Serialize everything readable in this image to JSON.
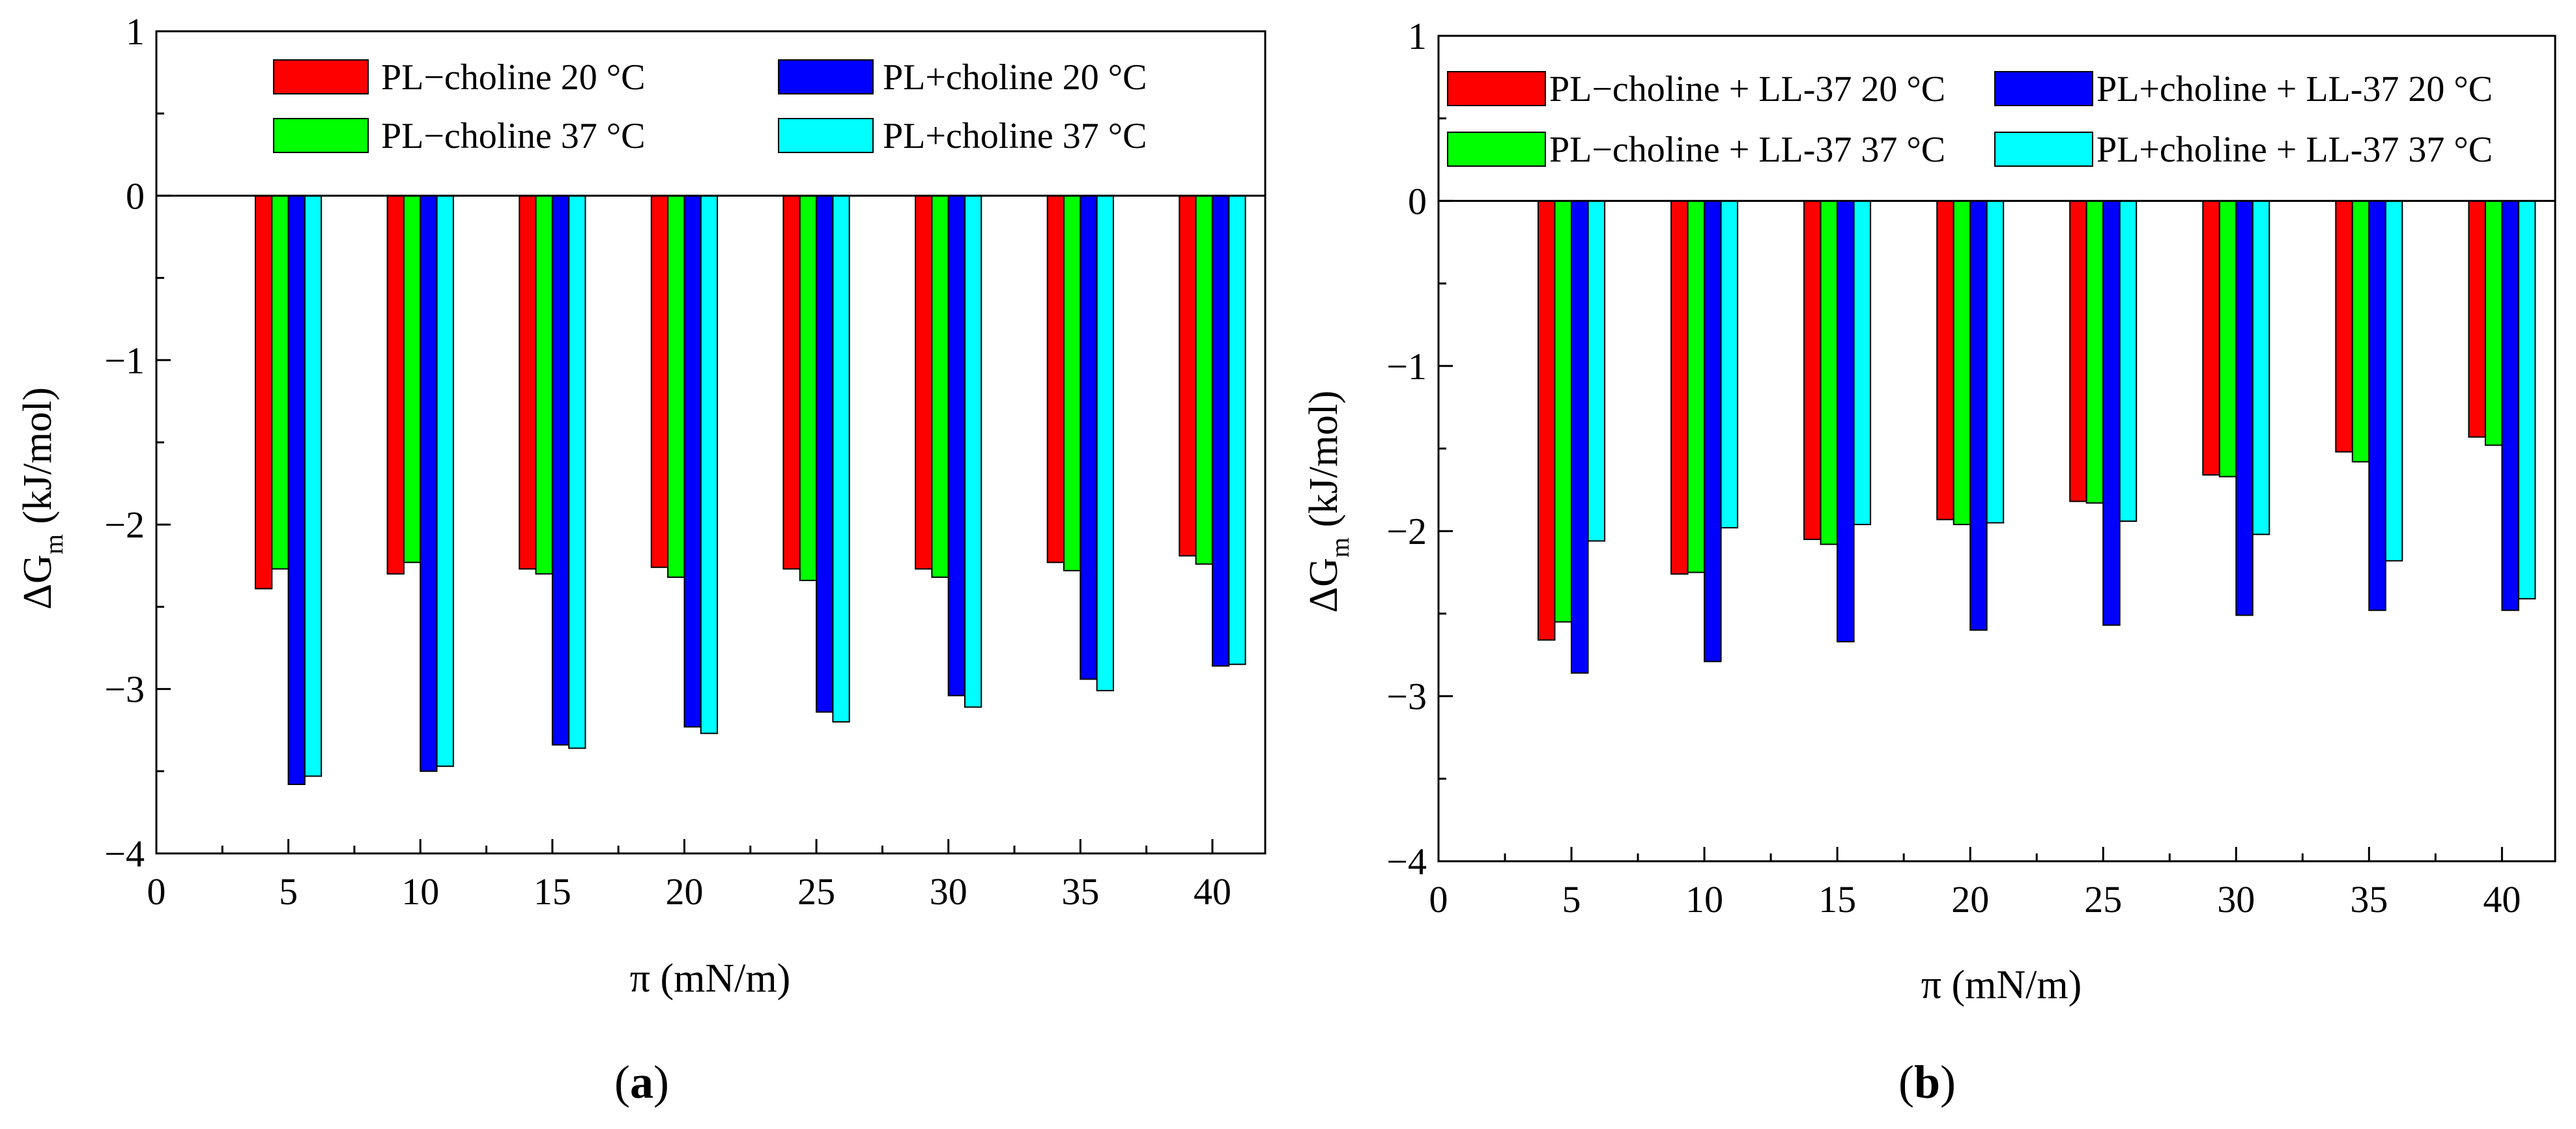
{
  "figure": {
    "panels": [
      {
        "label_open": "(",
        "label_letter": "a",
        "label_close": ")"
      },
      {
        "label_open": "(",
        "label_letter": "b",
        "label_close": ")"
      }
    ]
  },
  "chart_data": [
    {
      "type": "bar",
      "panel": "a",
      "xlabel": "π (mN/m)",
      "ylabel_main": "ΔG",
      "ylabel_sub": "m",
      "ylabel_unit": "(kJ/mol)",
      "xlim": [
        0,
        42
      ],
      "ylim": [
        -4,
        1
      ],
      "x_ticks": [
        0,
        5,
        10,
        15,
        20,
        25,
        30,
        35,
        40
      ],
      "x_tick_labels": [
        "0",
        "5",
        "10",
        "15",
        "20",
        "25",
        "30",
        "35",
        "40"
      ],
      "y_ticks": [
        1,
        0,
        -1,
        -2,
        -3,
        -4
      ],
      "y_tick_labels": [
        "1",
        "0",
        "−1",
        "−2",
        "−3",
        "−4"
      ],
      "categories": [
        5,
        10,
        15,
        20,
        25,
        30,
        35,
        40
      ],
      "legend_position": "top",
      "series": [
        {
          "name": "PL−choline 20 °C",
          "color": "#ff0000",
          "values": [
            -2.39,
            -2.3,
            -2.27,
            -2.26,
            -2.27,
            -2.27,
            -2.23,
            -2.19
          ]
        },
        {
          "name": "PL−choline 37 °C",
          "color": "#00ff00",
          "values": [
            -2.27,
            -2.23,
            -2.3,
            -2.32,
            -2.34,
            -2.32,
            -2.28,
            -2.24
          ]
        },
        {
          "name": "PL+choline 20 °C",
          "color": "#0000ff",
          "values": [
            -3.58,
            -3.5,
            -3.34,
            -3.23,
            -3.14,
            -3.04,
            -2.94,
            -2.86
          ]
        },
        {
          "name": "PL+choline 37 °C",
          "color": "#00ffff",
          "values": [
            -3.53,
            -3.47,
            -3.36,
            -3.27,
            -3.2,
            -3.11,
            -3.01,
            -2.85
          ]
        }
      ]
    },
    {
      "type": "bar",
      "panel": "b",
      "xlabel": "π (mN/m)",
      "ylabel_main": "ΔG",
      "ylabel_sub": "m",
      "ylabel_unit": "(kJ/mol)",
      "xlim": [
        0,
        42
      ],
      "ylim": [
        -4,
        1
      ],
      "x_ticks": [
        0,
        5,
        10,
        15,
        20,
        25,
        30,
        35,
        40
      ],
      "x_tick_labels": [
        "0",
        "5",
        "10",
        "15",
        "20",
        "25",
        "30",
        "35",
        "40"
      ],
      "y_ticks": [
        1,
        0,
        -1,
        -2,
        -3,
        -4
      ],
      "y_tick_labels": [
        "1",
        "0",
        "−1",
        "−2",
        "−3",
        "−4"
      ],
      "categories": [
        5,
        10,
        15,
        20,
        25,
        30,
        35,
        40
      ],
      "legend_position": "top",
      "series": [
        {
          "name": "PL−choline + LL-37 20 °C",
          "color": "#ff0000",
          "values": [
            -2.66,
            -2.26,
            -2.05,
            -1.93,
            -1.82,
            -1.66,
            -1.52,
            -1.43
          ]
        },
        {
          "name": "PL−choline + LL-37 37 °C",
          "color": "#00ff00",
          "values": [
            -2.55,
            -2.25,
            -2.08,
            -1.96,
            -1.83,
            -1.67,
            -1.58,
            -1.48
          ]
        },
        {
          "name": "PL+choline + LL-37 20 °C",
          "color": "#0000ff",
          "values": [
            -2.86,
            -2.79,
            -2.67,
            -2.6,
            -2.57,
            -2.51,
            -2.48,
            -2.48
          ]
        },
        {
          "name": "PL+choline + LL-37 37 °C",
          "color": "#00ffff",
          "values": [
            -2.06,
            -1.98,
            -1.96,
            -1.95,
            -1.94,
            -2.02,
            -2.18,
            -2.41
          ]
        }
      ]
    }
  ]
}
